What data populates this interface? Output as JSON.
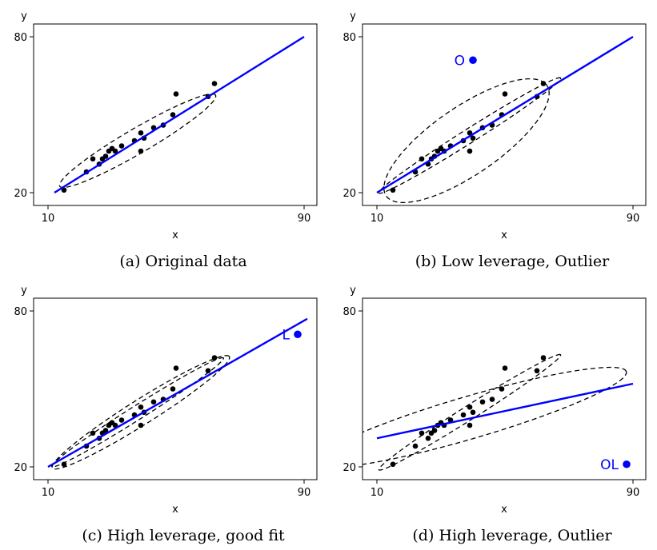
{
  "colors": {
    "fit": "#0000ff",
    "points": "#000000",
    "ellipse": "#000000",
    "special": "#0000ff"
  },
  "chart_data": [
    {
      "type": "scatter",
      "caption": "(a) Original data",
      "xlabel": "x",
      "ylabel": "y",
      "xlim": [
        10,
        90
      ],
      "ylim": [
        20,
        80
      ],
      "x_ticks": [
        "10",
        "90"
      ],
      "y_ticks": [
        "20",
        "80"
      ],
      "points": [
        [
          15,
          21
        ],
        [
          22,
          28
        ],
        [
          24,
          33
        ],
        [
          26,
          31
        ],
        [
          27,
          33
        ],
        [
          28,
          34
        ],
        [
          29,
          36
        ],
        [
          30,
          37
        ],
        [
          31,
          36
        ],
        [
          33,
          38
        ],
        [
          37,
          40
        ],
        [
          39,
          36
        ],
        [
          39,
          43
        ],
        [
          40,
          41
        ],
        [
          43,
          45
        ],
        [
          46,
          46
        ],
        [
          49,
          50
        ],
        [
          50,
          58
        ],
        [
          60,
          57
        ],
        [
          62,
          62
        ]
      ],
      "fit_line": [
        [
          12,
          20
        ],
        [
          90,
          80
        ]
      ],
      "ellipses": [
        {
          "cx": 38,
          "cy": 40,
          "rx": 30,
          "ry": 4.5,
          "angle_deg": 36
        }
      ],
      "special_points": []
    },
    {
      "type": "scatter",
      "caption": "(b) Low leverage, Outlier",
      "xlabel": "x",
      "ylabel": "y",
      "xlim": [
        10,
        90
      ],
      "ylim": [
        20,
        80
      ],
      "x_ticks": [
        "10",
        "90"
      ],
      "y_ticks": [
        "20",
        "80"
      ],
      "points": [
        [
          15,
          21
        ],
        [
          22,
          28
        ],
        [
          24,
          33
        ],
        [
          26,
          31
        ],
        [
          27,
          33
        ],
        [
          28,
          34
        ],
        [
          29,
          36
        ],
        [
          30,
          37
        ],
        [
          31,
          36
        ],
        [
          33,
          38
        ],
        [
          37,
          40
        ],
        [
          39,
          36
        ],
        [
          39,
          43
        ],
        [
          40,
          41
        ],
        [
          43,
          45
        ],
        [
          46,
          46
        ],
        [
          49,
          50
        ],
        [
          50,
          58
        ],
        [
          60,
          57
        ],
        [
          62,
          62
        ]
      ],
      "fit_line": [
        [
          10,
          20
        ],
        [
          90,
          80
        ]
      ],
      "ellipses": [
        {
          "cx": 38,
          "cy": 40,
          "rx": 33,
          "ry": 12,
          "angle_deg": 42
        },
        {
          "cx": 39,
          "cy": 42,
          "rx": 36,
          "ry": 2.5,
          "angle_deg": 38
        }
      ],
      "special_points": [
        {
          "label": "O",
          "x": 40,
          "y": 71
        }
      ]
    },
    {
      "type": "scatter",
      "caption": "(c) High leverage, good fit",
      "xlabel": "x",
      "ylabel": "y",
      "xlim": [
        10,
        90
      ],
      "ylim": [
        20,
        80
      ],
      "x_ticks": [
        "10",
        "90"
      ],
      "y_ticks": [
        "20",
        "80"
      ],
      "points": [
        [
          15,
          21
        ],
        [
          22,
          28
        ],
        [
          24,
          33
        ],
        [
          26,
          31
        ],
        [
          27,
          33
        ],
        [
          28,
          34
        ],
        [
          29,
          36
        ],
        [
          30,
          37
        ],
        [
          31,
          36
        ],
        [
          33,
          38
        ],
        [
          37,
          40
        ],
        [
          39,
          36
        ],
        [
          39,
          43
        ],
        [
          40,
          41
        ],
        [
          43,
          45
        ],
        [
          46,
          46
        ],
        [
          49,
          50
        ],
        [
          50,
          58
        ],
        [
          60,
          57
        ],
        [
          62,
          62
        ]
      ],
      "fit_line": [
        [
          10,
          20
        ],
        [
          91,
          77
        ]
      ],
      "ellipses": [
        {
          "cx": 39,
          "cy": 41,
          "rx": 35,
          "ry": 4.5,
          "angle_deg": 38
        },
        {
          "cx": 38,
          "cy": 41,
          "rx": 34,
          "ry": 2.5,
          "angle_deg": 38
        }
      ],
      "special_points": [
        {
          "label": "L",
          "x": 88,
          "y": 71
        }
      ]
    },
    {
      "type": "scatter",
      "caption": "(d) High leverage, Outlier",
      "xlabel": "x",
      "ylabel": "y",
      "xlim": [
        10,
        90
      ],
      "ylim": [
        20,
        80
      ],
      "x_ticks": [
        "10",
        "90"
      ],
      "y_ticks": [
        "20",
        "80"
      ],
      "points": [
        [
          15,
          21
        ],
        [
          22,
          28
        ],
        [
          24,
          33
        ],
        [
          26,
          31
        ],
        [
          27,
          33
        ],
        [
          28,
          34
        ],
        [
          29,
          36
        ],
        [
          30,
          37
        ],
        [
          31,
          36
        ],
        [
          33,
          38
        ],
        [
          37,
          40
        ],
        [
          39,
          36
        ],
        [
          39,
          43
        ],
        [
          40,
          41
        ],
        [
          43,
          45
        ],
        [
          46,
          46
        ],
        [
          49,
          50
        ],
        [
          50,
          58
        ],
        [
          60,
          57
        ],
        [
          62,
          62
        ]
      ],
      "fit_line": [
        [
          10,
          31
        ],
        [
          90,
          52
        ]
      ],
      "ellipses": [
        {
          "cx": 39,
          "cy": 39,
          "rx": 52,
          "ry": 8,
          "angle_deg": 20
        },
        {
          "cx": 39,
          "cy": 41,
          "rx": 36,
          "ry": 2.5,
          "angle_deg": 38
        }
      ],
      "special_points": [
        {
          "label": "OL",
          "x": 88,
          "y": 21
        }
      ]
    }
  ]
}
